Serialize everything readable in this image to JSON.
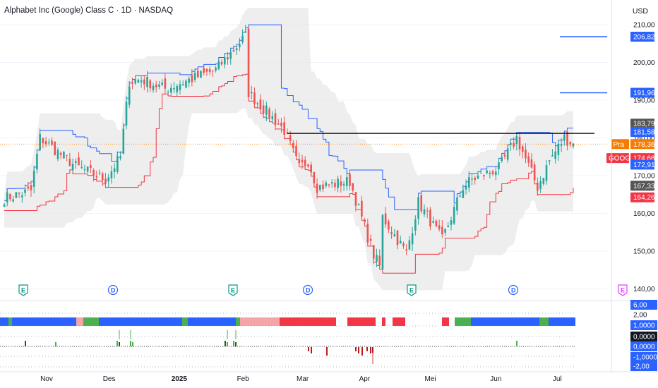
{
  "title": "Alphabet Inc (Google) Class C · 1D · NASDAQ",
  "currency": "USD",
  "colors": {
    "up": "#26a69a",
    "down": "#ef5350",
    "upper_band": "#2962ff",
    "lower_band": "#f23645",
    "cloud": "#e8e8e8",
    "trendline": "#000000",
    "hline": "#2962ff",
    "strip_blue": "#2962ff",
    "strip_green": "#4caf50",
    "strip_red": "#f23645",
    "strip_pink": "#f4a6a6",
    "tag_blue": "#2962ff",
    "tag_red": "#f23645",
    "tag_grey": "#555555",
    "tag_orange": "#f57c00"
  },
  "price_axis": {
    "ticks": [
      "210,00",
      "200,00",
      "190,00",
      "180,00",
      "170,00",
      "160,00",
      "150,00",
      "140,00"
    ]
  },
  "time_axis": {
    "labels": [
      "Nov",
      "Des",
      "2025",
      "Feb",
      "Mar",
      "Apr",
      "Mei",
      "Jun",
      "Jul"
    ]
  },
  "price_tags": [
    {
      "text": "206,82",
      "color": "blue"
    },
    {
      "text": "191,96",
      "color": "blue"
    },
    {
      "text": "183,79",
      "color": "grey"
    },
    {
      "text": "181,58",
      "color": "blue"
    },
    {
      "text": "178,36",
      "color": "orange",
      "prefix": "Pra"
    },
    {
      "text": "174,66",
      "color": "red",
      "prefix": "GOOG"
    },
    {
      "text": "172,91",
      "color": "blue"
    },
    {
      "text": "167,33",
      "color": "grey"
    },
    {
      "text": "164,26",
      "color": "red"
    }
  ],
  "osc_axis": {
    "labels": [
      {
        "text": "6,00",
        "style": "blue"
      },
      {
        "text": "2,00",
        "style": "plain"
      },
      {
        "text": "1,0000",
        "style": "blue"
      },
      {
        "text": "0,0000",
        "style": "black"
      },
      {
        "text": "0,0000",
        "style": "blue"
      },
      {
        "text": "-1,0000",
        "style": "blue"
      },
      {
        "text": "-2,00",
        "style": "blue"
      }
    ]
  },
  "markers": [
    {
      "letter": "E",
      "kind": "earnings"
    },
    {
      "letter": "D",
      "kind": "dividend"
    },
    {
      "letter": "E",
      "kind": "earnings"
    },
    {
      "letter": "D",
      "kind": "dividend"
    },
    {
      "letter": "E",
      "kind": "earnings"
    },
    {
      "letter": "D",
      "kind": "dividend"
    },
    {
      "letter": "E",
      "kind": "earnings-upcoming"
    }
  ],
  "chart_data": {
    "type": "candlestick",
    "ylim": [
      138,
      212
    ],
    "price_levels": [
      {
        "value": 206.82,
        "label": "206,82"
      },
      {
        "value": 191.96,
        "label": "191,96"
      }
    ],
    "trendline": {
      "from_date": "2025-02-24",
      "to_date": "2025-07-08",
      "value": 181.2
    },
    "anchor_closes": [
      {
        "date": "2024-10-14",
        "close": 164.0
      },
      {
        "date": "2024-10-25",
        "close": 166.0
      },
      {
        "date": "2024-10-30",
        "close": 180.0
      },
      {
        "date": "2024-11-15",
        "close": 172.5
      },
      {
        "date": "2024-11-29",
        "close": 169.0
      },
      {
        "date": "2024-12-06",
        "close": 175.0
      },
      {
        "date": "2024-12-11",
        "close": 195.0
      },
      {
        "date": "2024-12-17",
        "close": 195.5
      },
      {
        "date": "2024-12-27",
        "close": 193.0
      },
      {
        "date": "2025-01-21",
        "close": 198.0
      },
      {
        "date": "2025-02-04",
        "close": 207.0
      },
      {
        "date": "2025-02-05",
        "close": 192.0
      },
      {
        "date": "2025-02-21",
        "close": 182.0
      },
      {
        "date": "2025-02-28",
        "close": 172.0
      },
      {
        "date": "2025-03-05",
        "close": 174.0
      },
      {
        "date": "2025-03-10",
        "close": 167.0
      },
      {
        "date": "2025-03-25",
        "close": 168.5
      },
      {
        "date": "2025-04-04",
        "close": 149.0
      },
      {
        "date": "2025-04-08",
        "close": 146.0
      },
      {
        "date": "2025-04-09",
        "close": 159.0
      },
      {
        "date": "2025-04-21",
        "close": 149.5
      },
      {
        "date": "2025-04-25",
        "close": 163.0
      },
      {
        "date": "2025-05-07",
        "close": 153.0
      },
      {
        "date": "2025-05-16",
        "close": 167.0
      },
      {
        "date": "2025-05-21",
        "close": 169.0
      },
      {
        "date": "2025-06-03",
        "close": 172.0
      },
      {
        "date": "2025-06-11",
        "close": 180.0
      },
      {
        "date": "2025-06-20",
        "close": 167.0
      },
      {
        "date": "2025-06-26",
        "close": 174.0
      },
      {
        "date": "2025-07-03",
        "close": 180.0
      },
      {
        "date": "2025-07-08",
        "close": 178.36
      }
    ]
  }
}
